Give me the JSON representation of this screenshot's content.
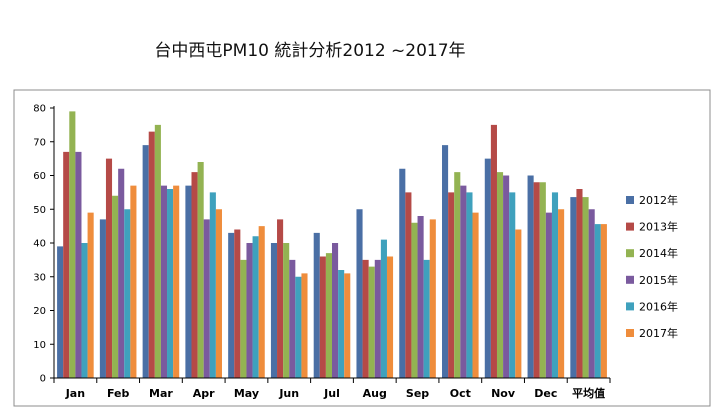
{
  "chart_data": {
    "type": "bar",
    "title": "台中西屯PM10 統計分析2012 ~2017年",
    "xlabel": "",
    "ylabel": "",
    "ylim": [
      0,
      80
    ],
    "yticks": [
      0,
      10,
      20,
      30,
      40,
      50,
      60,
      70,
      80
    ],
    "grid": false,
    "legend_position": "right",
    "categories": [
      "Jan",
      "Feb",
      "Mar",
      "Apr",
      "May",
      "Jun",
      "Jul",
      "Aug",
      "Sep",
      "Oct",
      "Nov",
      "Dec",
      "平均值"
    ],
    "series": [
      {
        "name": "2012年",
        "color": "#4a6fa5",
        "values": [
          39,
          47,
          69,
          57,
          43,
          40,
          43,
          50,
          62,
          69,
          65,
          60,
          53.6
        ]
      },
      {
        "name": "2013年",
        "color": "#b54a47",
        "values": [
          67,
          65,
          73,
          61,
          44,
          47,
          36,
          35,
          55,
          55,
          75,
          58,
          56
        ]
      },
      {
        "name": "2014年",
        "color": "#93b352",
        "values": [
          79,
          54,
          75,
          64,
          35,
          40,
          37,
          33,
          46,
          61,
          61,
          58,
          53.6
        ]
      },
      {
        "name": "2015年",
        "color": "#7a5a9e",
        "values": [
          67,
          62,
          57,
          47,
          40,
          35,
          40,
          35,
          48,
          57,
          60,
          49,
          50
        ]
      },
      {
        "name": "2016年",
        "color": "#3fa1bd",
        "values": [
          40,
          50,
          56,
          55,
          42,
          30,
          32,
          41,
          35,
          55,
          55,
          55,
          45.6
        ]
      },
      {
        "name": "2017年",
        "color": "#ef8d3c",
        "values": [
          49,
          57,
          57,
          50,
          45,
          31,
          31,
          36,
          47,
          49,
          44,
          50,
          45.6
        ]
      }
    ]
  }
}
